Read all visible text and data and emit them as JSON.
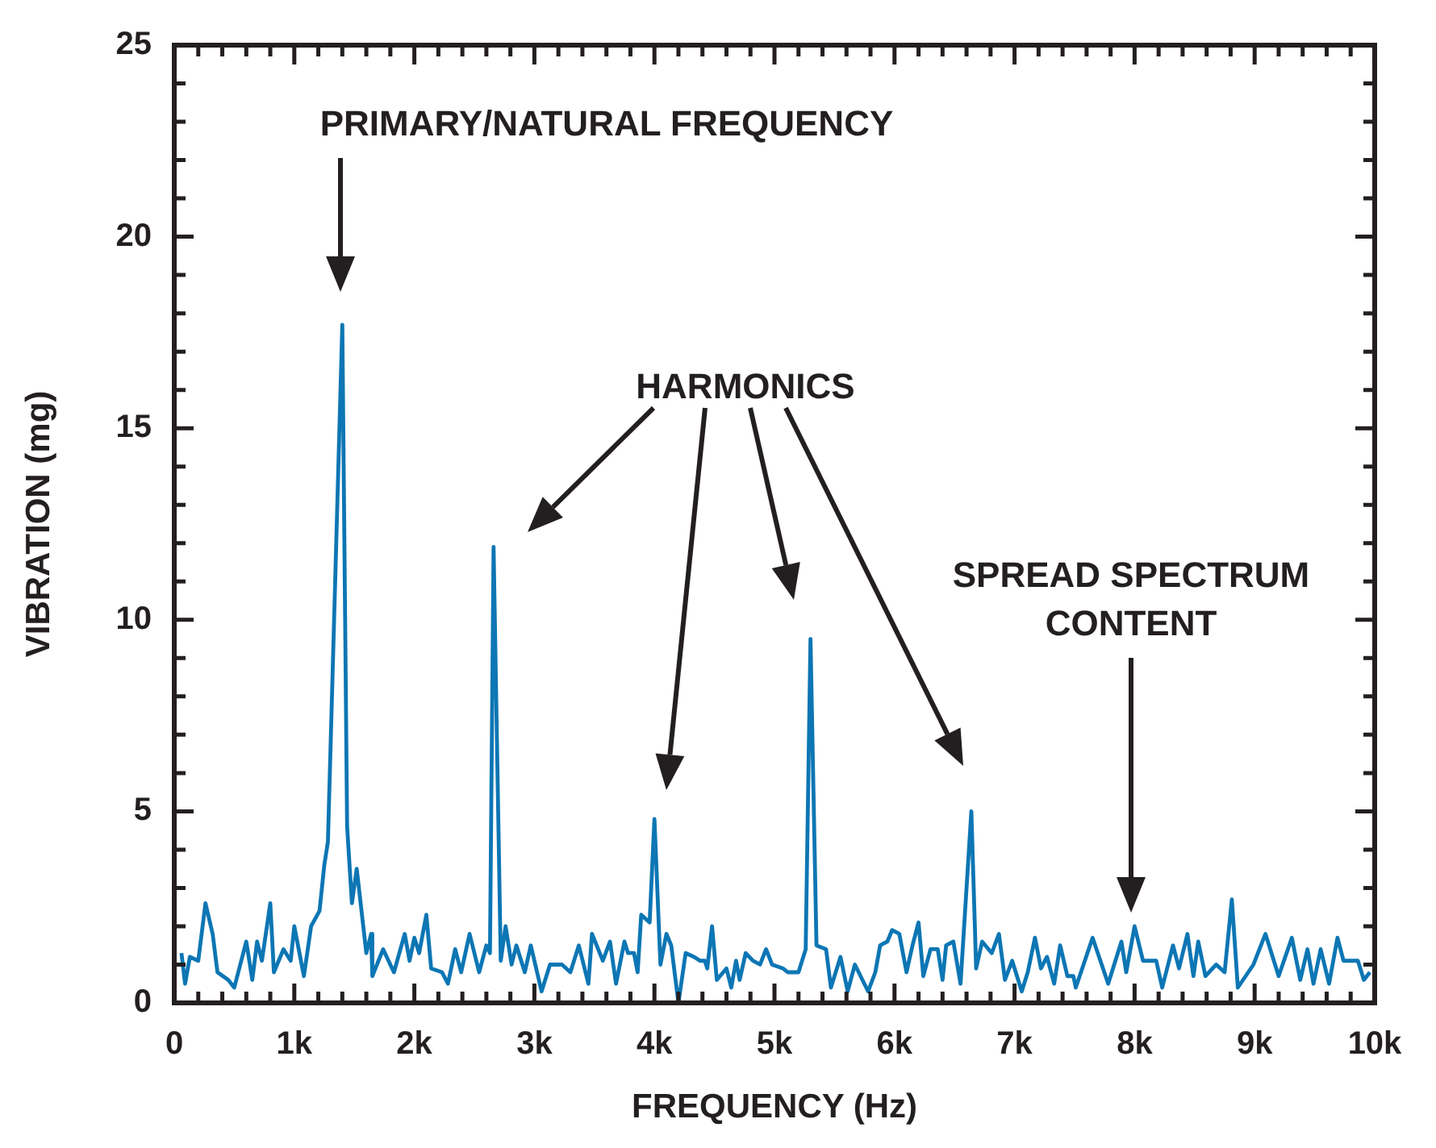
{
  "chart_data": {
    "type": "line",
    "xlabel": "FREQUENCY (Hz)",
    "ylabel": "VIBRATION (mg)",
    "xlim": [
      0,
      10000
    ],
    "ylim": [
      0,
      25
    ],
    "xticks": [
      0,
      {
        "value": 200,
        "label": null
      },
      {
        "value": 400,
        "label": null
      },
      {
        "value": 600,
        "label": null
      },
      {
        "value": 800,
        "label": null
      },
      {
        "value": 1000,
        "label": "1k"
      },
      {
        "value": 1200,
        "label": null
      },
      {
        "value": 1400,
        "label": null
      },
      {
        "value": 1600,
        "label": null
      },
      {
        "value": 1800,
        "label": null
      },
      {
        "value": 2000,
        "label": "2k"
      },
      {
        "value": 2200,
        "label": null
      },
      {
        "value": 2400,
        "label": null
      },
      {
        "value": 2600,
        "label": null
      },
      {
        "value": 2800,
        "label": null
      },
      {
        "value": 3000,
        "label": "3k"
      },
      {
        "value": 3200,
        "label": null
      },
      {
        "value": 3400,
        "label": null
      },
      {
        "value": 3600,
        "label": null
      },
      {
        "value": 3800,
        "label": null
      },
      {
        "value": 4000,
        "label": "4k"
      },
      {
        "value": 4200,
        "label": null
      },
      {
        "value": 4400,
        "label": null
      },
      {
        "value": 4600,
        "label": null
      },
      {
        "value": 4800,
        "label": null
      },
      {
        "value": 5000,
        "label": "5k"
      },
      {
        "value": 5200,
        "label": null
      },
      {
        "value": 5400,
        "label": null
      },
      {
        "value": 5600,
        "label": null
      },
      {
        "value": 5800,
        "label": null
      },
      {
        "value": 6000,
        "label": "6k"
      },
      {
        "value": 6200,
        "label": null
      },
      {
        "value": 6400,
        "label": null
      },
      {
        "value": 6600,
        "label": null
      },
      {
        "value": 6800,
        "label": null
      },
      {
        "value": 7000,
        "label": "7k"
      },
      {
        "value": 7200,
        "label": null
      },
      {
        "value": 7400,
        "label": null
      },
      {
        "value": 7600,
        "label": null
      },
      {
        "value": 7800,
        "label": null
      },
      {
        "value": 8000,
        "label": "8k"
      },
      {
        "value": 8200,
        "label": null
      },
      {
        "value": 8400,
        "label": null
      },
      {
        "value": 8600,
        "label": null
      },
      {
        "value": 8800,
        "label": null
      },
      {
        "value": 9000,
        "label": "9k"
      },
      {
        "value": 9200,
        "label": null
      },
      {
        "value": 9400,
        "label": null
      },
      {
        "value": 9600,
        "label": null
      },
      {
        "value": 9800,
        "label": null
      },
      {
        "value": 10000,
        "label": "10k"
      }
    ],
    "yticks": [
      0,
      {
        "value": 1,
        "label": null
      },
      {
        "value": 2,
        "label": null
      },
      {
        "value": 3,
        "label": null
      },
      {
        "value": 4,
        "label": null
      },
      5,
      {
        "value": 6,
        "label": null
      },
      {
        "value": 7,
        "label": null
      },
      {
        "value": 8,
        "label": null
      },
      {
        "value": 9,
        "label": null
      },
      10,
      {
        "value": 11,
        "label": null
      },
      {
        "value": 12,
        "label": null
      },
      {
        "value": 13,
        "label": null
      },
      {
        "value": 14,
        "label": null
      },
      15,
      {
        "value": 16,
        "label": null
      },
      {
        "value": 17,
        "label": null
      },
      {
        "value": 18,
        "label": null
      },
      {
        "value": 19,
        "label": null
      },
      20,
      {
        "value": 21,
        "label": null
      },
      {
        "value": 22,
        "label": null
      },
      {
        "value": 23,
        "label": null
      },
      {
        "value": 24,
        "label": null
      },
      25
    ],
    "grid": false,
    "legend": false,
    "marker": "none",
    "line_style": "solid",
    "annotations": [
      "PRIMARY/NATURAL FREQUENCY",
      "HARMONICS",
      "SPREAD SPECTRUM CONTENT"
    ],
    "series": [
      {
        "color": "#0d76b4",
        "x": [
          60,
          90,
          130,
          200,
          260,
          320,
          360,
          450,
          500,
          600,
          650,
          690,
          730,
          800,
          830,
          910,
          970,
          1000,
          1080,
          1140,
          1210,
          1250,
          1280,
          1400,
          1440,
          1480,
          1520,
          1600,
          1640,
          1650,
          1740,
          1830,
          1920,
          1960,
          2000,
          2040,
          2100,
          2140,
          2230,
          2280,
          2340,
          2390,
          2460,
          2540,
          2600,
          2630,
          2660,
          2720,
          2760,
          2810,
          2850,
          2920,
          2970,
          3060,
          3130,
          3230,
          3300,
          3370,
          3450,
          3480,
          3570,
          3630,
          3680,
          3750,
          3780,
          3830,
          3860,
          3890,
          3960,
          4000,
          4050,
          4100,
          4140,
          4200,
          4260,
          4330,
          4380,
          4420,
          4440,
          4480,
          4520,
          4600,
          4640,
          4680,
          4710,
          4760,
          4820,
          4880,
          4930,
          4980,
          5070,
          5110,
          5160,
          5200,
          5260,
          5300,
          5350,
          5430,
          5470,
          5550,
          5610,
          5670,
          5780,
          5840,
          5880,
          5940,
          5980,
          6040,
          6100,
          6150,
          6200,
          6240,
          6300,
          6360,
          6400,
          6430,
          6490,
          6550,
          6640,
          6680,
          6730,
          6810,
          6870,
          6920,
          6980,
          7060,
          7110,
          7170,
          7220,
          7270,
          7330,
          7380,
          7440,
          7490,
          7510,
          7650,
          7780,
          7890,
          7930,
          8000,
          8070,
          8180,
          8230,
          8320,
          8370,
          8440,
          8490,
          8530,
          8590,
          8680,
          8750,
          8810,
          8860,
          8990,
          9090,
          9200,
          9310,
          9380,
          9440,
          9490,
          9550,
          9620,
          9690,
          9740,
          9800,
          9860,
          9910,
          9960
        ],
        "values": [
          1.3,
          0.5,
          1.2,
          1.1,
          2.6,
          1.8,
          0.8,
          0.6,
          0.4,
          1.6,
          0.6,
          1.6,
          1.1,
          2.6,
          0.8,
          1.4,
          1.1,
          2.0,
          0.7,
          2.0,
          2.4,
          3.6,
          4.2,
          17.7,
          4.6,
          2.6,
          3.5,
          1.3,
          1.8,
          0.7,
          1.4,
          0.8,
          1.8,
          1.1,
          1.7,
          1.3,
          2.3,
          0.9,
          0.8,
          0.5,
          1.4,
          0.8,
          1.8,
          0.8,
          1.5,
          1.3,
          11.9,
          1.1,
          2.0,
          1.0,
          1.5,
          0.8,
          1.5,
          0.3,
          1.0,
          1.0,
          0.8,
          1.5,
          0.5,
          1.8,
          1.1,
          1.6,
          0.5,
          1.6,
          1.3,
          1.3,
          0.8,
          2.3,
          2.1,
          4.8,
          1.0,
          1.8,
          1.5,
          0,
          1.3,
          1.2,
          1.1,
          1.1,
          0.9,
          2.0,
          0.6,
          0.9,
          0.4,
          1.1,
          0.6,
          1.3,
          1.1,
          1.0,
          1.4,
          1.0,
          0.9,
          0.8,
          0.8,
          0.8,
          1.4,
          9.5,
          1.5,
          1.4,
          0.4,
          1.2,
          0.3,
          1.0,
          0.3,
          0.8,
          1.5,
          1.6,
          1.9,
          1.8,
          0.8,
          1.5,
          2.1,
          0.7,
          1.4,
          1.4,
          0.6,
          1.5,
          1.6,
          0.5,
          5.0,
          0.9,
          1.6,
          1.3,
          1.8,
          0.6,
          1.1,
          0.3,
          0.8,
          1.7,
          0.9,
          1.2,
          0.5,
          1.5,
          0.7,
          0.7,
          0.4,
          1.7,
          0.5,
          1.6,
          0.8,
          2.0,
          1.1,
          1.1,
          0.4,
          1.5,
          0.9,
          1.8,
          0.7,
          1.6,
          0.7,
          1.0,
          0.8,
          2.7,
          0.4,
          1.0,
          1.8,
          0.7,
          1.7,
          0.6,
          1.4,
          0.5,
          1.4,
          0.5,
          1.7,
          1.1,
          1.1,
          1.1,
          0.6,
          0.8
        ]
      }
    ]
  }
}
